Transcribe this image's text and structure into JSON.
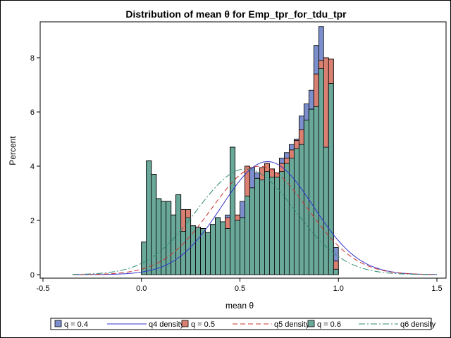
{
  "chart_data": {
    "type": "bar",
    "title": "Distribution of mean θ for Emp_tpr_for_tdu_tpr",
    "xlabel": "mean θ",
    "ylabel": "Percent",
    "xlim": [
      -0.5,
      1.5
    ],
    "ylim": [
      0,
      9.2
    ],
    "xticks": [
      "-0.5",
      "0.0",
      "0.5",
      "1.0",
      "1.5"
    ],
    "yticks": [
      "0",
      "2",
      "4",
      "6",
      "8"
    ],
    "grid": false,
    "legend_position": "bottom",
    "bin_width": 0.025,
    "bin_start": 0.0,
    "colors": {
      "q4": "#7c8fcc",
      "q5": "#d98072",
      "q6": "#6aa89a",
      "q4_density": "#3333cc",
      "q5_density": "#cc3333",
      "q6_density": "#2e8b6e"
    },
    "series": [
      {
        "name": "q = 0.4",
        "color_key": "q4",
        "values": [
          1.2,
          4.2,
          3.7,
          2.8,
          2.7,
          2.7,
          2.2,
          2.95,
          1.6,
          2.1,
          1.8,
          1.75,
          1.7,
          1.55,
          1.85,
          2.1,
          1.95,
          2.2,
          4.7,
          2.2,
          2.7,
          4.0,
          3.95,
          3.75,
          3.95,
          4.1,
          3.9,
          3.75,
          4.3,
          4.5,
          4.8,
          5.0,
          5.85,
          6.3,
          6.8,
          8.45,
          9.15,
          8.0,
          7.95,
          1.0
        ]
      },
      {
        "name": "q = 0.5",
        "color_key": "q5",
        "values": [
          1.2,
          4.2,
          3.7,
          2.8,
          2.7,
          2.7,
          2.2,
          2.95,
          2.4,
          2.4,
          1.8,
          1.75,
          1.7,
          1.55,
          1.85,
          2.1,
          1.95,
          2.1,
          4.7,
          2.2,
          2.1,
          4.0,
          3.2,
          3.55,
          3.95,
          4.1,
          3.9,
          3.75,
          4.1,
          4.3,
          4.6,
          4.95,
          5.35,
          5.7,
          6.1,
          7.4,
          7.9,
          8.0,
          7.95,
          0.5
        ]
      },
      {
        "name": "q = 0.6",
        "color_key": "q6",
        "values": [
          1.2,
          4.2,
          3.7,
          2.8,
          2.7,
          2.7,
          2.2,
          2.95,
          1.6,
          2.1,
          1.8,
          1.75,
          1.7,
          1.55,
          1.85,
          2.1,
          1.95,
          1.7,
          4.7,
          2.0,
          2.1,
          2.9,
          3.2,
          3.55,
          3.5,
          3.8,
          3.6,
          3.6,
          3.8,
          4.1,
          4.3,
          4.65,
          4.8,
          5.7,
          6.1,
          6.2,
          7.6,
          4.7,
          7.05,
          0.2
        ]
      }
    ],
    "densities": [
      {
        "name": "q4 density",
        "color_key": "q4_density",
        "dash": "solid",
        "mean": 0.64,
        "sd": 0.232,
        "peak": 4.17
      },
      {
        "name": "q5 density",
        "color_key": "q5_density",
        "dash": "dash",
        "mean": 0.6,
        "sd": 0.245,
        "peak": 4.0
      },
      {
        "name": "q6 density",
        "color_key": "q6_density",
        "dash": "dashdot",
        "mean": 0.53,
        "sd": 0.25,
        "peak": 3.9
      }
    ],
    "legend": [
      {
        "label": "q = 0.4",
        "kind": "swatch",
        "color_key": "q4"
      },
      {
        "label": "q4 density",
        "kind": "line",
        "color_key": "q4_density",
        "dash": "solid"
      },
      {
        "label": "q = 0.5",
        "kind": "swatch",
        "color_key": "q5"
      },
      {
        "label": "q5 density",
        "kind": "line",
        "color_key": "q5_density",
        "dash": "dash"
      },
      {
        "label": "q = 0.6",
        "kind": "swatch",
        "color_key": "q6"
      },
      {
        "label": "q6 density",
        "kind": "line",
        "color_key": "q6_density",
        "dash": "dashdot"
      }
    ]
  }
}
